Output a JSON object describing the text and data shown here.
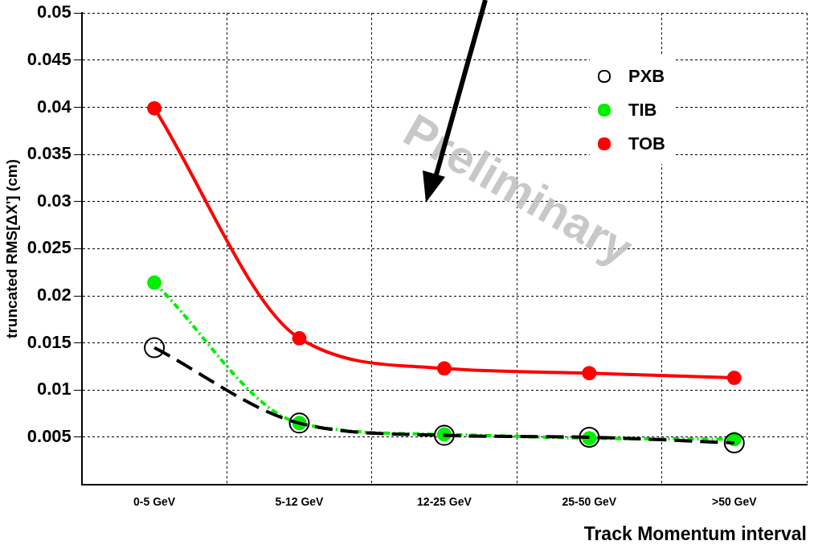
{
  "chart_data": {
    "type": "line",
    "xlabel": "Track Momentum interval",
    "ylabel": "truncated RMS[ΔX'] (cm)",
    "categories": [
      "0-5 GeV",
      "5-12 GeV",
      "12-25 GeV",
      "25-50 GeV",
      ">50 GeV"
    ],
    "series": [
      {
        "name": "PXB",
        "color": "#000000",
        "values": [
          0.0145,
          0.0065,
          0.0052,
          0.005,
          0.0044
        ],
        "line_style": "dashed"
      },
      {
        "name": "TIB",
        "color": "#00ee00",
        "values": [
          0.0214,
          0.0065,
          0.0053,
          0.0049,
          0.0048
        ],
        "line_style": "dotted"
      },
      {
        "name": "TOB",
        "color": "#ff0000",
        "values": [
          0.0399,
          0.0155,
          0.0123,
          0.0118,
          0.0113
        ],
        "line_style": "solid"
      }
    ],
    "ylim": [
      0,
      0.05
    ],
    "yticks": [
      0.005,
      0.01,
      0.015,
      0.02,
      0.025,
      0.03,
      0.035,
      0.04,
      0.045,
      0.05
    ],
    "grid": true,
    "legend": "top right",
    "marker": "circle",
    "annotations": [
      "Preliminary"
    ]
  }
}
